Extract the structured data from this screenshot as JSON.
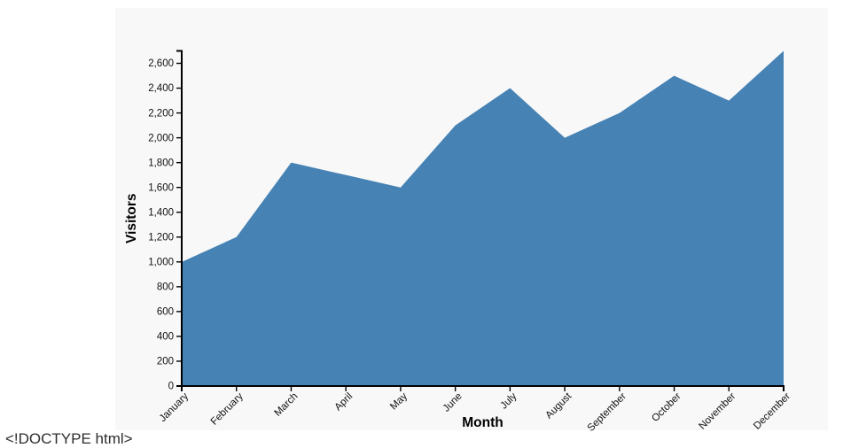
{
  "page": {
    "stray_text": "<!DOCTYPE html>"
  },
  "chart_data": {
    "type": "area",
    "title": "",
    "xlabel": "Month",
    "ylabel": "Visitors",
    "categories": [
      "January",
      "February",
      "March",
      "April",
      "May",
      "June",
      "July",
      "August",
      "September",
      "October",
      "November",
      "December"
    ],
    "series": [
      {
        "name": "Visitors",
        "values": [
          1000,
          1200,
          1800,
          1700,
          1600,
          2100,
          2400,
          2000,
          2200,
          2500,
          2300,
          2700
        ]
      }
    ],
    "ylim": [
      0,
      2700
    ],
    "ytick_step": 200,
    "ytick_labels": [
      "0",
      "200",
      "400",
      "600",
      "800",
      "1,000",
      "1,200",
      "1,400",
      "1,600",
      "1,800",
      "2,000",
      "2,200",
      "2,400",
      "2,600"
    ],
    "grid": false,
    "legend": false,
    "colors": {
      "area_fill": "#4682b4",
      "panel_background": "#f8f8f8",
      "page_background": "#ffffff",
      "axis": "#000000",
      "tick_label": "#111111"
    }
  }
}
